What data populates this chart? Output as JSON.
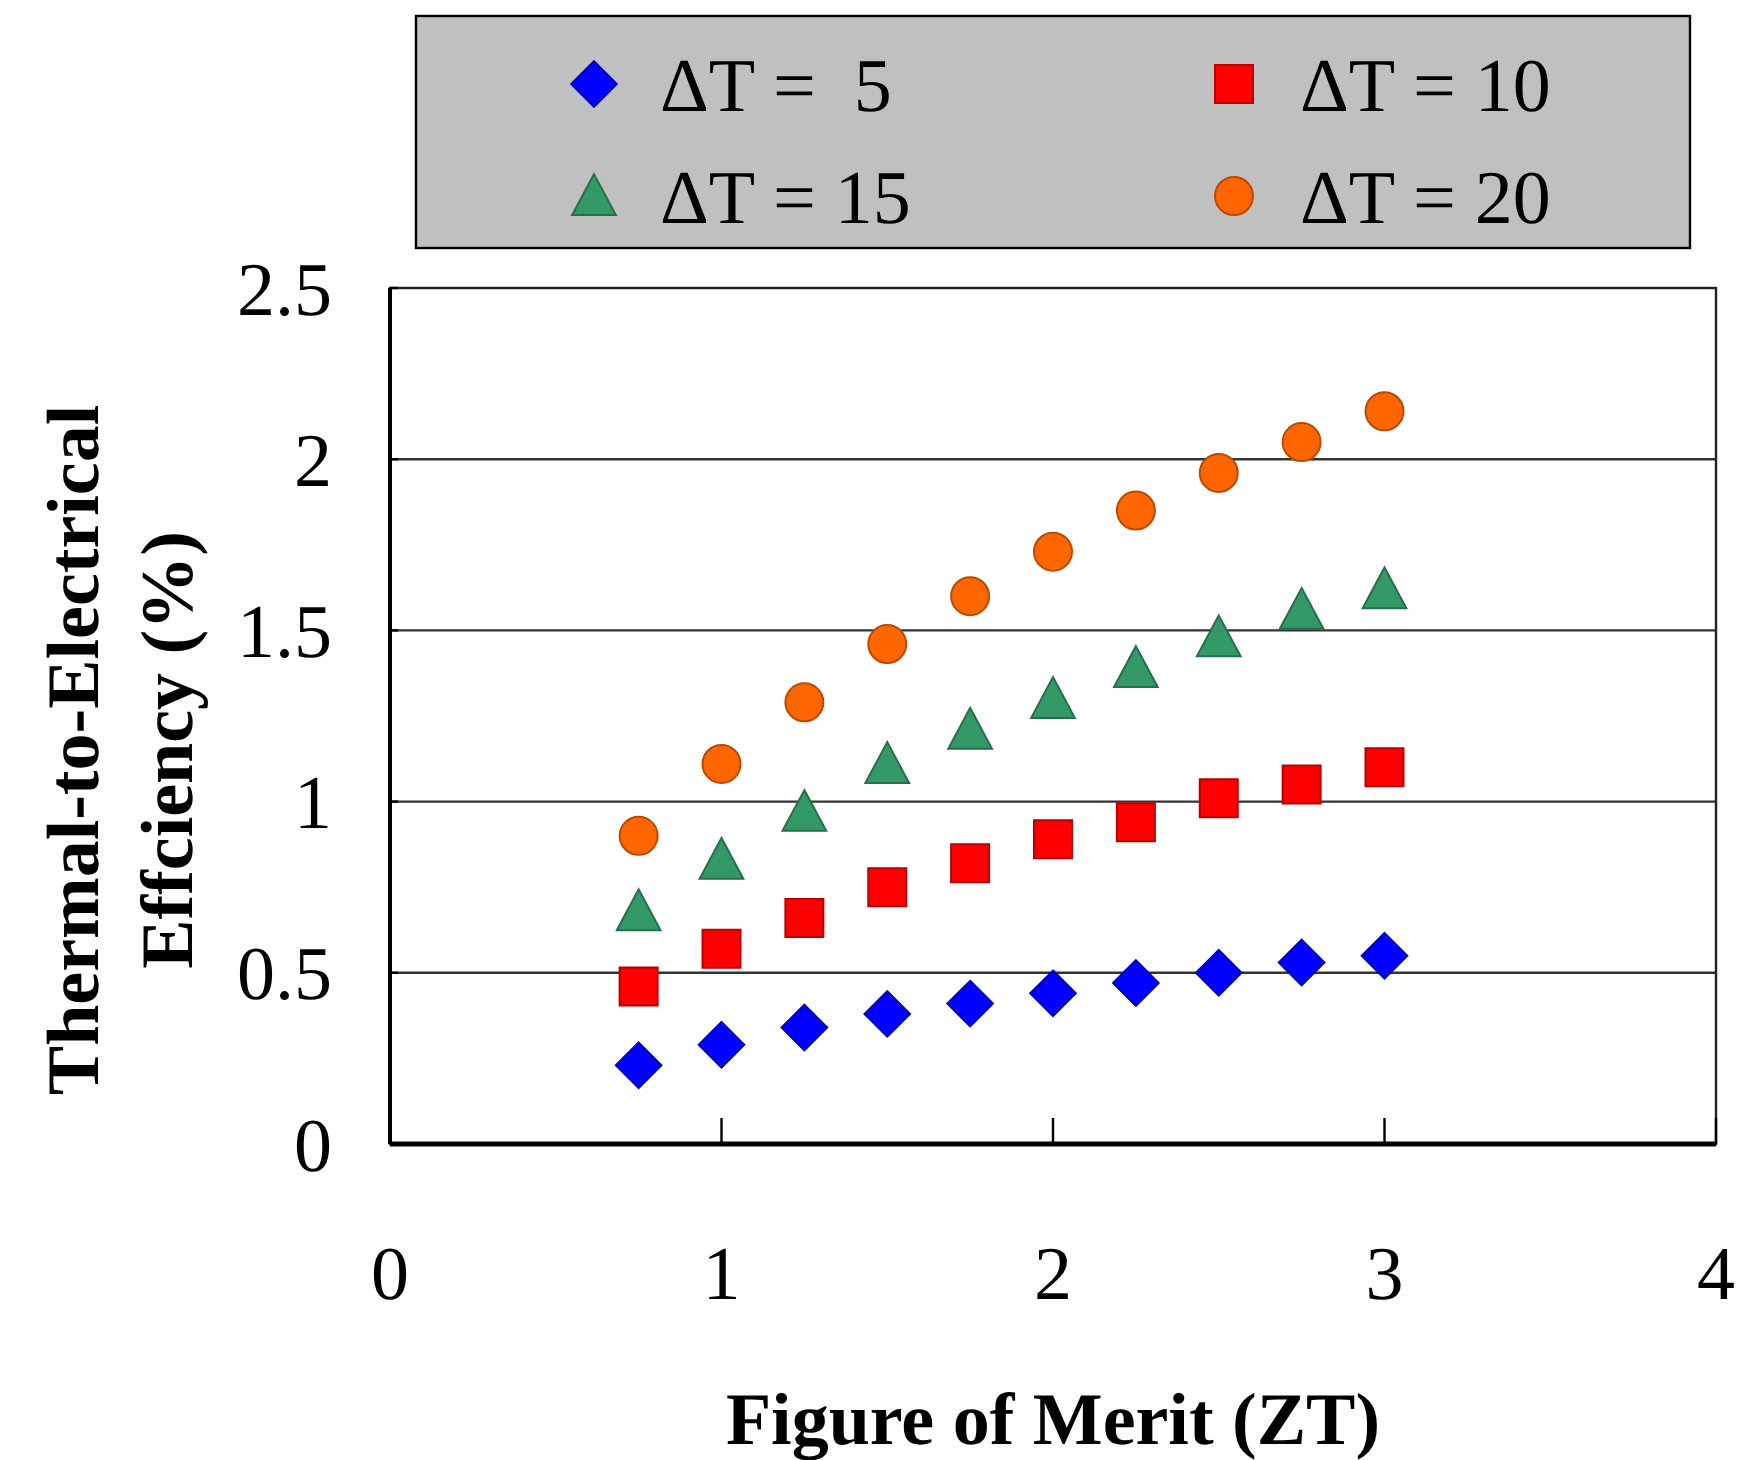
{
  "chart_data": {
    "type": "scatter",
    "xlabel": "Figure of Merit (ZT)",
    "ylabel": "Thermal-to-Electrical\nEffciency (%)",
    "x": [
      0.75,
      1,
      1.25,
      1.5,
      1.75,
      2,
      2.25,
      2.5,
      2.75,
      3
    ],
    "series": [
      {
        "name": "ΔT =  5",
        "color": "#0000ff",
        "marker": "diamond",
        "values": [
          0.23,
          0.29,
          0.34,
          0.38,
          0.41,
          0.44,
          0.47,
          0.5,
          0.53,
          0.55
        ]
      },
      {
        "name": "ΔT = 10",
        "color": "#ff0000",
        "marker": "square",
        "values": [
          0.46,
          0.57,
          0.66,
          0.75,
          0.82,
          0.89,
          0.94,
          1.01,
          1.05,
          1.1
        ]
      },
      {
        "name": "ΔT = 15",
        "color": "#339966",
        "marker": "triangle",
        "values": [
          0.68,
          0.83,
          0.97,
          1.11,
          1.21,
          1.3,
          1.39,
          1.48,
          1.56,
          1.62
        ]
      },
      {
        "name": "ΔT = 20",
        "color": "#ff6600",
        "marker": "circle",
        "values": [
          0.9,
          1.11,
          1.29,
          1.46,
          1.6,
          1.73,
          1.85,
          1.96,
          2.05,
          2.14
        ]
      }
    ],
    "xlim": [
      0,
      4
    ],
    "xticks": [
      0,
      1,
      2,
      3,
      4
    ],
    "ylim": [
      0,
      2.5
    ],
    "yticks": [
      0,
      0.5,
      1,
      1.5,
      2,
      2.5
    ],
    "grid": "y",
    "legend": "top"
  }
}
